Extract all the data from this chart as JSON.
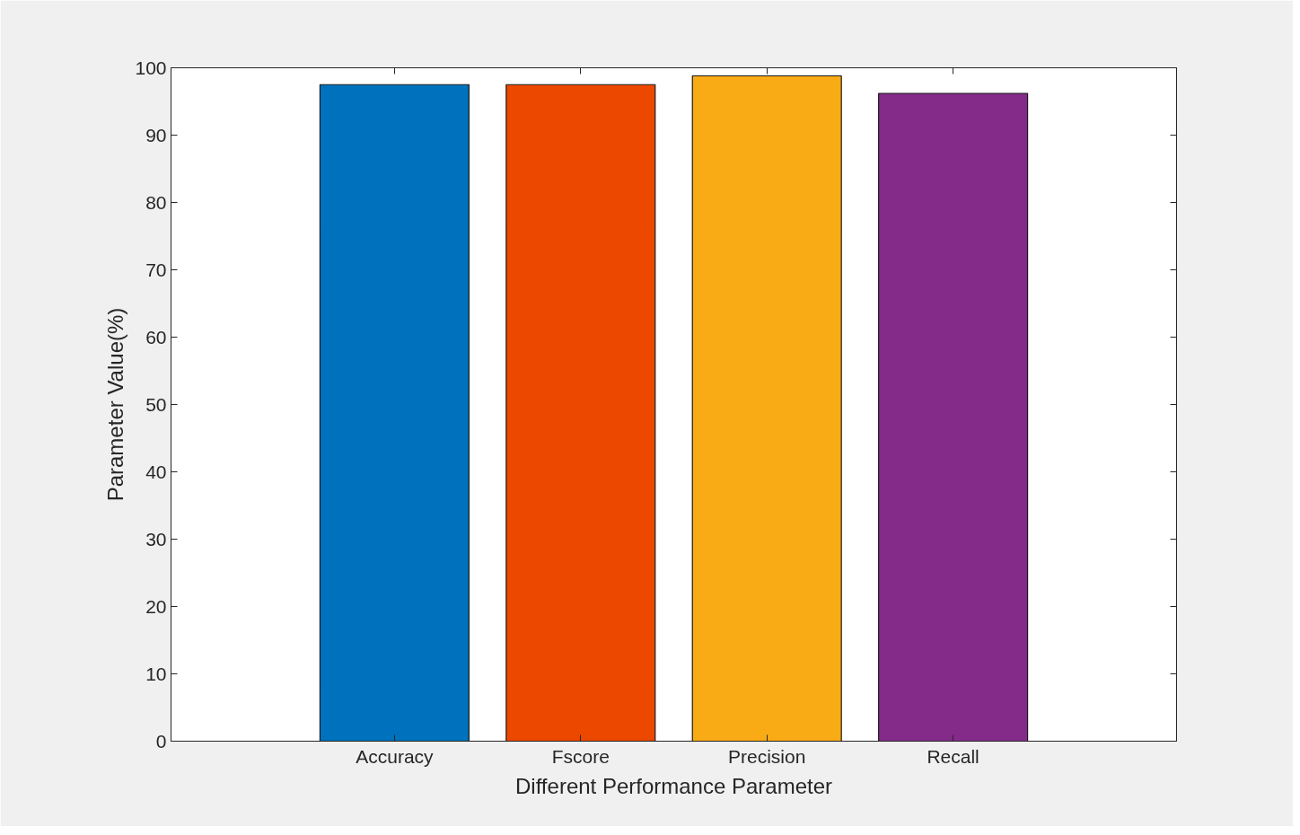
{
  "chart_data": {
    "type": "bar",
    "xlabel": "Different Performance Parameter",
    "ylabel": "Parameter Value(%)",
    "categories": [
      "Accuracy",
      "Fscore",
      "Precision",
      "Recall"
    ],
    "values": [
      97.5,
      97.5,
      98.8,
      96.2
    ],
    "colors": [
      "#0072bd",
      "#ec4800",
      "#f9ab15",
      "#842a89"
    ],
    "ylim": [
      0,
      100
    ],
    "yticks": [
      0,
      10,
      20,
      30,
      40,
      50,
      60,
      70,
      80,
      90,
      100
    ],
    "grid": false
  }
}
